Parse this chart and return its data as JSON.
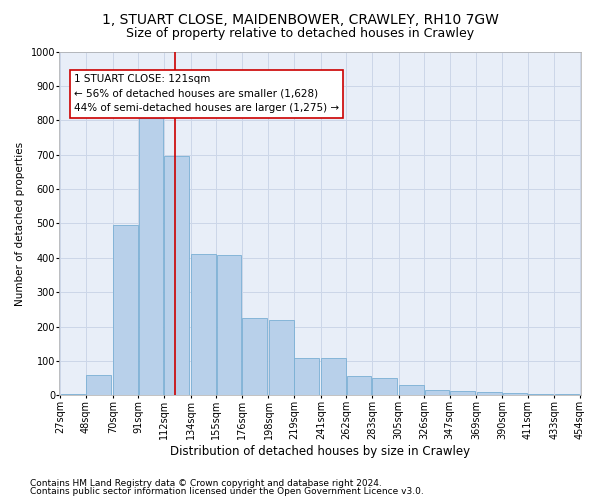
{
  "title1": "1, STUART CLOSE, MAIDENBOWER, CRAWLEY, RH10 7GW",
  "title2": "Size of property relative to detached houses in Crawley",
  "xlabel": "Distribution of detached houses by size in Crawley",
  "ylabel": "Number of detached properties",
  "footnote1": "Contains HM Land Registry data © Crown copyright and database right 2024.",
  "footnote2": "Contains public sector information licensed under the Open Government Licence v3.0.",
  "annotation_line1": "1 STUART CLOSE: 121sqm",
  "annotation_line2": "← 56% of detached houses are smaller (1,628)",
  "annotation_line3": "44% of semi-detached houses are larger (1,275) →",
  "bar_color": "#b8d0ea",
  "bar_edge_color": "#7aafd4",
  "bar_left_edges": [
    27,
    48,
    70,
    91,
    112,
    134,
    155,
    176,
    198,
    219,
    241,
    262,
    283,
    305,
    326,
    347,
    369,
    390,
    411,
    433
  ],
  "bar_heights": [
    5,
    60,
    495,
    808,
    695,
    410,
    408,
    225,
    220,
    110,
    110,
    55,
    50,
    30,
    15,
    12,
    10,
    8,
    5,
    5
  ],
  "bin_width": 21,
  "red_line_x": 121,
  "ylim": [
    0,
    1000
  ],
  "yticks": [
    0,
    100,
    200,
    300,
    400,
    500,
    600,
    700,
    800,
    900,
    1000
  ],
  "xtick_labels": [
    "27sqm",
    "48sqm",
    "70sqm",
    "91sqm",
    "112sqm",
    "134sqm",
    "155sqm",
    "176sqm",
    "198sqm",
    "219sqm",
    "241sqm",
    "262sqm",
    "283sqm",
    "305sqm",
    "326sqm",
    "347sqm",
    "369sqm",
    "390sqm",
    "411sqm",
    "433sqm",
    "454sqm"
  ],
  "grid_color": "#ccd6e8",
  "bg_color": "#e8eef8",
  "annotation_box_facecolor": "#ffffff",
  "annotation_box_edgecolor": "#cc0000",
  "red_line_color": "#cc0000",
  "title1_fontsize": 10,
  "title2_fontsize": 9,
  "annotation_fontsize": 7.5,
  "axis_tick_fontsize": 7,
  "xlabel_fontsize": 8.5,
  "ylabel_fontsize": 7.5,
  "footnote_fontsize": 6.5
}
